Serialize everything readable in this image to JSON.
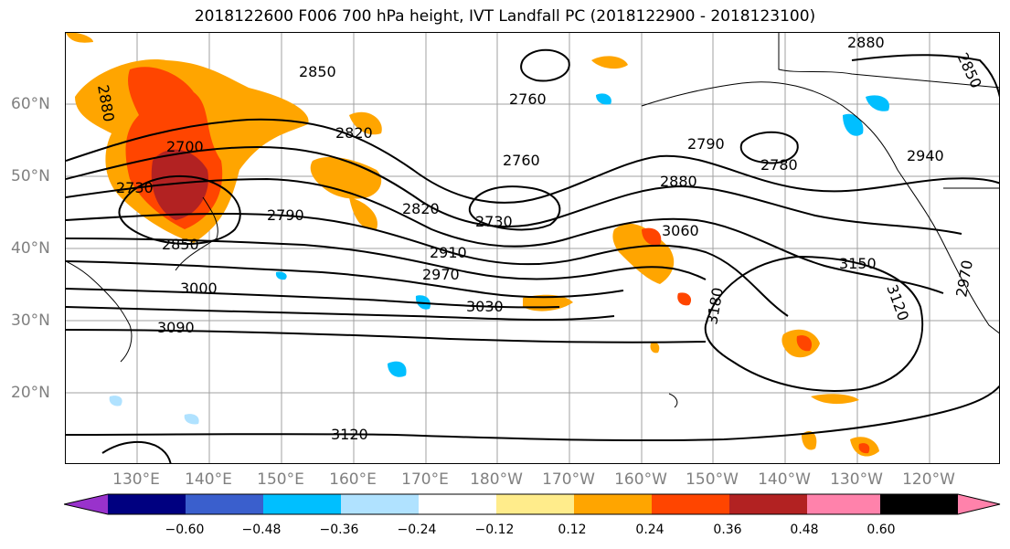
{
  "title": "2018122600 F006 700 hPa height, IVT Landfall PC (2018122900 - 2018123100)",
  "lat_labels": [
    "60°N",
    "50°N",
    "40°N",
    "30°N",
    "20°N"
  ],
  "lon_labels": [
    "130°E",
    "140°E",
    "150°E",
    "160°E",
    "170°E",
    "180°W",
    "170°W",
    "160°W",
    "150°W",
    "140°W",
    "130°W",
    "120°W"
  ],
  "contour_labels": [
    "2880",
    "2850",
    "2760",
    "2700",
    "2730",
    "2850",
    "2820",
    "2790",
    "3000",
    "3090",
    "2760",
    "2730",
    "2820",
    "2910",
    "2970",
    "3030",
    "2790",
    "2780",
    "2880",
    "3060",
    "3180",
    "3150",
    "3120",
    "2940",
    "2970",
    "2880",
    "2850",
    "3120"
  ],
  "colorbar": {
    "colors": [
      "#9932cc",
      "#000080",
      "#3a5fcd",
      "#00bfff",
      "#b0e2ff",
      "#ffffff",
      "#ffec8b",
      "#ffa500",
      "#ff4500",
      "#b22222",
      "#ff82ab"
    ],
    "ticks": [
      "−0.60",
      "−0.48",
      "−0.36",
      "−0.24",
      "−0.12",
      "0.12",
      "0.24",
      "0.36",
      "0.48",
      "0.60"
    ]
  }
}
